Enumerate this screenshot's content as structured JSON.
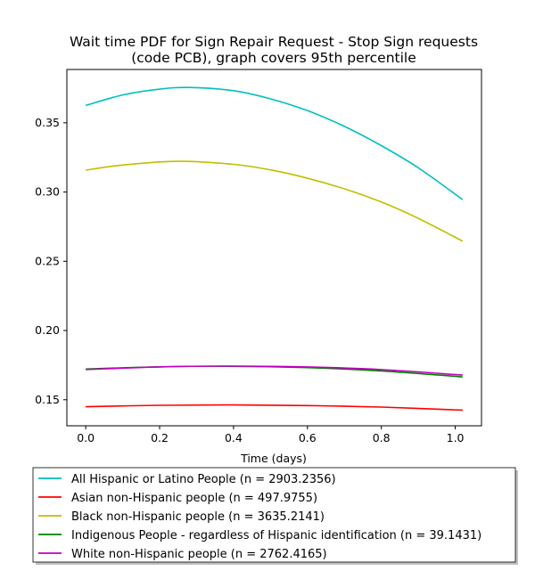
{
  "chart_data": {
    "type": "line",
    "title": "Wait time PDF for Sign Repair Request - Stop Sign  requests",
    "subtitle": "(code PCB), graph covers 95th percentile",
    "xlabel": "Time (days)",
    "ylabel": "",
    "xlim": [
      -0.051,
      1.071
    ],
    "ylim": [
      0.1312,
      0.3885
    ],
    "xticks": [
      "0.0",
      "0.2",
      "0.4",
      "0.6",
      "0.8",
      "1.0"
    ],
    "yticks": [
      "0.15",
      "0.20",
      "0.25",
      "0.30",
      "0.35"
    ],
    "grid": false,
    "legend_position": "bottom",
    "series": [
      {
        "name": "All Hispanic or Latino People (n = 2903.2356)",
        "color": "#00bfbf",
        "x": [
          0.0,
          0.1,
          0.2,
          0.28,
          0.4,
          0.5,
          0.6,
          0.7,
          0.8,
          0.9,
          1.02
        ],
        "y": [
          0.3625,
          0.3701,
          0.3743,
          0.3755,
          0.3732,
          0.3673,
          0.3588,
          0.3474,
          0.3335,
          0.3175,
          0.2945
        ]
      },
      {
        "name": "Asian non-Hispanic people (n = 497.9755)",
        "color": "#ff0000",
        "x": [
          0.0,
          0.2,
          0.4,
          0.6,
          0.8,
          1.02
        ],
        "y": [
          0.145,
          0.146,
          0.1463,
          0.1458,
          0.1447,
          0.1425
        ]
      },
      {
        "name": "Black non-Hispanic people (n = 3635.2141)",
        "color": "#bfbf00",
        "x": [
          0.0,
          0.1,
          0.25,
          0.4,
          0.5,
          0.6,
          0.7,
          0.8,
          0.9,
          1.02
        ],
        "y": [
          0.3158,
          0.3195,
          0.3222,
          0.32,
          0.316,
          0.31,
          0.3023,
          0.2928,
          0.281,
          0.2645
        ]
      },
      {
        "name": "Indigenous People - regardless of Hispanic identification (n = 39.1431)",
        "color": "#008000",
        "x": [
          0.0,
          0.2,
          0.37,
          0.6,
          0.8,
          1.02
        ],
        "y": [
          0.1722,
          0.1738,
          0.1742,
          0.1732,
          0.1708,
          0.1665
        ]
      },
      {
        "name": "White non-Hispanic people (n = 2762.4165)",
        "color": "#bf00bf",
        "x": [
          0.0,
          0.2,
          0.4,
          0.6,
          0.8,
          1.02
        ],
        "y": [
          0.1718,
          0.1737,
          0.1743,
          0.1737,
          0.1718,
          0.1678
        ]
      }
    ]
  }
}
